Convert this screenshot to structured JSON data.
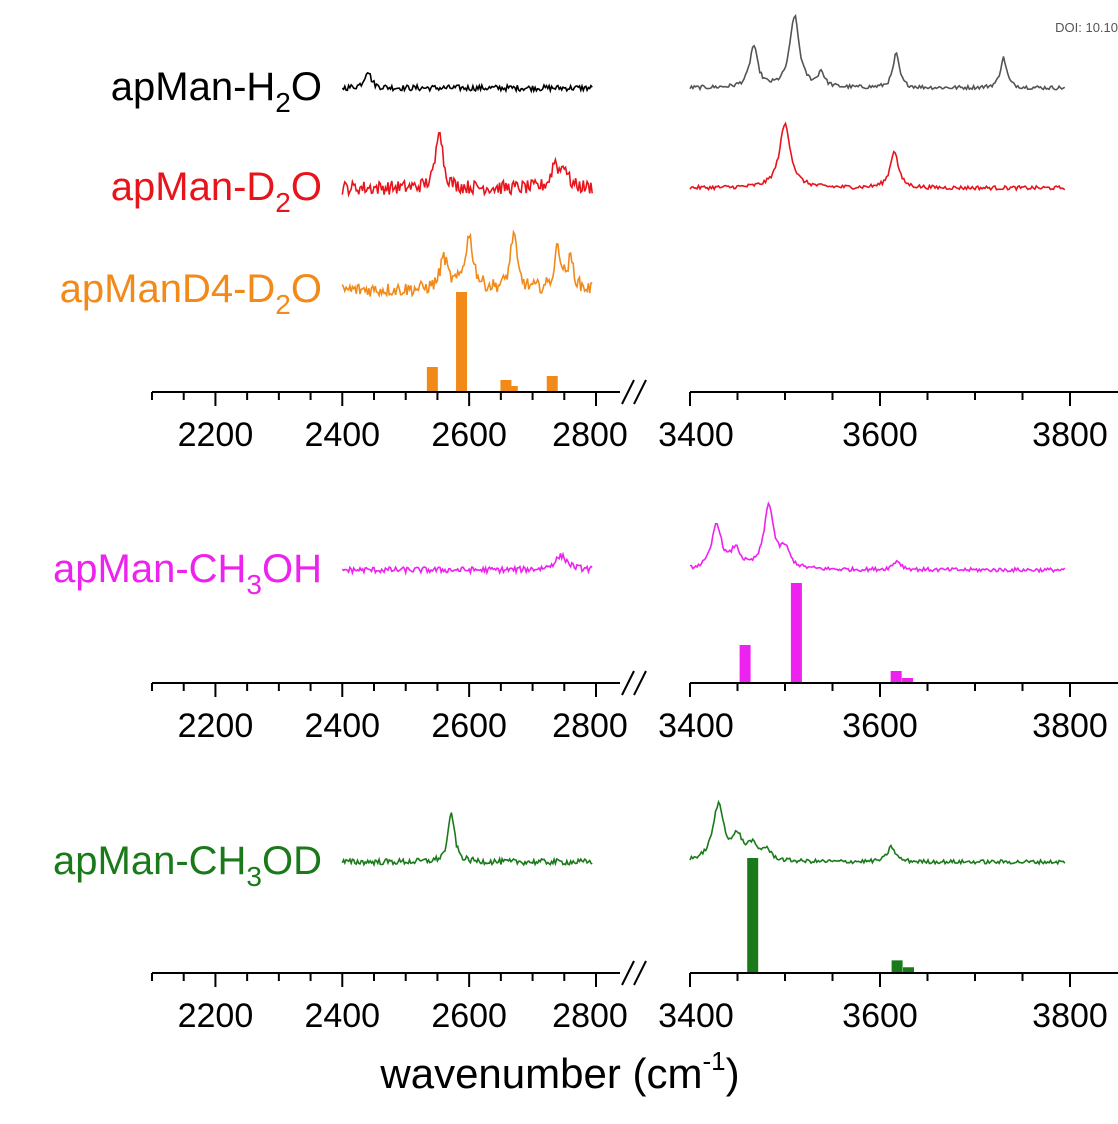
{
  "doi_text": "DOI: 10.10",
  "chart_data": {
    "type": "line",
    "xlabel": {
      "main": "wavenumber (cm",
      "sup": "-1",
      "close": ")"
    },
    "x_segments": [
      {
        "xlim": [
          2100,
          2800
        ],
        "ticks": [
          2200,
          2400,
          2600,
          2800
        ]
      },
      {
        "xlim": [
          3400,
          3800
        ],
        "ticks": [
          3400,
          3600,
          3800
        ]
      }
    ],
    "colors": {
      "apMan-H2O": "#000000",
      "apMan-H2O-OH": "#555555",
      "apMan-D2O": "#e8141b",
      "apManD4-D2O": "#f28a1a",
      "apMan-CH3OH": "#ee22ee",
      "apMan-CH3OD": "#1a7a1a"
    },
    "panels": [
      {
        "axis_tick_labels": [
          "2200",
          "2400",
          "2600",
          "2800",
          "3400",
          "3600",
          "3800"
        ],
        "spectra": [
          {
            "name": {
              "pre": "apMan-H",
              "sub": "2",
              "post": "O"
            },
            "color": "#000000",
            "color_right": "#555555",
            "left_peaks": [
              [
                2440,
                0.25,
                6
              ]
            ],
            "right_peaks": [
              [
                3467,
                0.55,
                5
              ],
              [
                3510,
                0.95,
                6
              ],
              [
                3538,
                0.2,
                4
              ],
              [
                3617,
                0.45,
                4
              ],
              [
                3730,
                0.4,
                4
              ]
            ]
          },
          {
            "name": {
              "pre": "apMan-D",
              "sub": "2",
              "post": "O"
            },
            "color": "#e8141b",
            "left_peaks": [
              [
                2553,
                0.9,
                6
              ],
              [
                2735,
                0.35,
                6
              ],
              [
                2750,
                0.3,
                6
              ]
            ],
            "right_peaks": [
              [
                3500,
                0.85,
                7
              ],
              [
                3615,
                0.5,
                5
              ]
            ]
          },
          {
            "name": {
              "pre": "apManD4-D",
              "sub": "2",
              "post": "O"
            },
            "color": "#f28a1a",
            "left_peaks": [
              [
                2560,
                0.45,
                7
              ],
              [
                2600,
                0.75,
                8
              ],
              [
                2670,
                0.8,
                6
              ],
              [
                2740,
                0.6,
                6
              ],
              [
                2760,
                0.4,
                6
              ]
            ],
            "right_peaks": []
          }
        ],
        "calc_sticks": {
          "color": "#f28a1a",
          "sticks": [
            [
              2542,
              0.25
            ],
            [
              2588,
              1.0
            ],
            [
              2658,
              0.12
            ],
            [
              2668,
              0.06
            ],
            [
              2731,
              0.16
            ]
          ]
        }
      },
      {
        "axis_tick_labels": [
          "2200",
          "2400",
          "2600",
          "2800",
          "3400",
          "3600",
          "3800"
        ],
        "spectra": [
          {
            "name": {
              "pre": "apMan-CH",
              "sub": "3",
              "post": "OH"
            },
            "color": "#ee22ee",
            "left_peaks": [
              [
                2745,
                0.2,
                12
              ]
            ],
            "right_peaks": [
              [
                3428,
                0.6,
                6
              ],
              [
                3448,
                0.25,
                6
              ],
              [
                3483,
                0.85,
                6
              ],
              [
                3500,
                0.25,
                6
              ],
              [
                3618,
                0.12,
                5
              ]
            ]
          }
        ],
        "calc_sticks": {
          "color": "#ee22ee",
          "sticks": [
            [
              3458,
              0.38
            ],
            [
              3512,
              1.0
            ],
            [
              3617,
              0.12
            ],
            [
              3629,
              0.05
            ]
          ]
        }
      },
      {
        "axis_tick_labels": [
          "2200",
          "2400",
          "2600",
          "2800",
          "3400",
          "3600",
          "3800"
        ],
        "spectra": [
          {
            "name": {
              "pre": "apMan-CH",
              "sub": "3",
              "post": "OD"
            },
            "color": "#1a7a1a",
            "left_peaks": [
              [
                2572,
                0.7,
                6
              ]
            ],
            "right_peaks": [
              [
                3430,
                0.75,
                7
              ],
              [
                3450,
                0.3,
                6
              ],
              [
                3465,
                0.2,
                6
              ],
              [
                3480,
                0.15,
                6
              ],
              [
                3612,
                0.2,
                5
              ]
            ]
          }
        ],
        "calc_sticks": {
          "color": "#1a7a1a",
          "sticks": [
            [
              3466,
              1.0
            ],
            [
              3618,
              0.11
            ],
            [
              3630,
              0.05
            ]
          ]
        }
      }
    ]
  }
}
